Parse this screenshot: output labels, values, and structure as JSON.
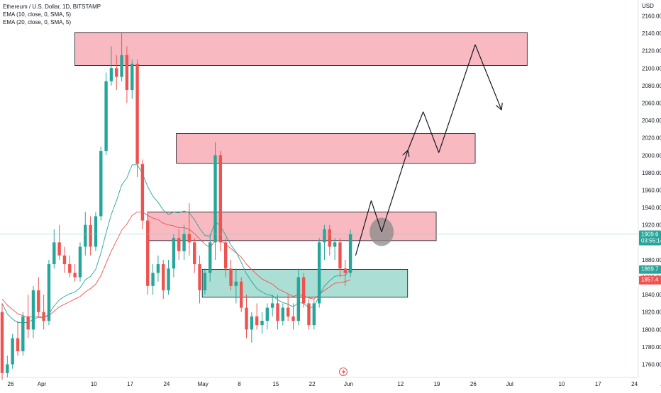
{
  "legend": {
    "title": "Ethereum / U.S. Dollar, 1D, BITSTAMP",
    "ema10": "EMA (10, close, 0, SMA, 5)",
    "ema20": "EMA (20, close, 0, SMA, 5)"
  },
  "colors": {
    "up": "#26a69a",
    "down": "#ef5350",
    "ema10": "#26a69a",
    "ema20": "#ef5350",
    "resistance_fill": "#f7a1ab",
    "support_fill": "#8fd3c6",
    "price_line": "#80cbc4"
  },
  "chart_data": {
    "type": "candlestick",
    "title": "Ethereum / U.S. Dollar, 1D, BITSTAMP",
    "y_axis_unit": "USD",
    "ylim": [
      1745,
      2175
    ],
    "y_ticks": [
      1760,
      1780,
      1800,
      1820,
      1840,
      1860,
      1880,
      1900,
      1920,
      1940,
      1960,
      1980,
      2000,
      2020,
      2040,
      2060,
      2080,
      2100,
      2120,
      2140,
      2160
    ],
    "x_ticks": [
      "26",
      "Apr",
      "10",
      "17",
      "24",
      "May",
      "8",
      "15",
      "22",
      "Jun",
      "12",
      "19",
      "26",
      "Jul",
      "10",
      "17",
      "24",
      "Aug"
    ],
    "current_price": "1909.6",
    "countdown": "03:55:14",
    "ema10_last": "1869.7",
    "ema20_last": "1857.4",
    "candles": [
      {
        "o": 1820,
        "h": 1830,
        "l": 1742,
        "c": 1750
      },
      {
        "o": 1750,
        "h": 1770,
        "l": 1745,
        "c": 1760
      },
      {
        "o": 1760,
        "h": 1795,
        "l": 1755,
        "c": 1790
      },
      {
        "o": 1790,
        "h": 1810,
        "l": 1770,
        "c": 1775
      },
      {
        "o": 1775,
        "h": 1820,
        "l": 1770,
        "c": 1815
      },
      {
        "o": 1815,
        "h": 1840,
        "l": 1790,
        "c": 1800
      },
      {
        "o": 1800,
        "h": 1850,
        "l": 1790,
        "c": 1845
      },
      {
        "o": 1845,
        "h": 1860,
        "l": 1815,
        "c": 1820
      },
      {
        "o": 1820,
        "h": 1840,
        "l": 1800,
        "c": 1810
      },
      {
        "o": 1810,
        "h": 1880,
        "l": 1805,
        "c": 1875
      },
      {
        "o": 1875,
        "h": 1915,
        "l": 1870,
        "c": 1900
      },
      {
        "o": 1900,
        "h": 1920,
        "l": 1880,
        "c": 1885
      },
      {
        "o": 1885,
        "h": 1895,
        "l": 1865,
        "c": 1875
      },
      {
        "o": 1875,
        "h": 1885,
        "l": 1860,
        "c": 1865
      },
      {
        "o": 1865,
        "h": 1875,
        "l": 1855,
        "c": 1860
      },
      {
        "o": 1860,
        "h": 1900,
        "l": 1855,
        "c": 1895
      },
      {
        "o": 1895,
        "h": 1935,
        "l": 1885,
        "c": 1920
      },
      {
        "o": 1920,
        "h": 1930,
        "l": 1885,
        "c": 1895
      },
      {
        "o": 1895,
        "h": 1935,
        "l": 1890,
        "c": 1930
      },
      {
        "o": 1930,
        "h": 2010,
        "l": 1925,
        "c": 2005
      },
      {
        "o": 2005,
        "h": 2095,
        "l": 2000,
        "c": 2085
      },
      {
        "o": 2085,
        "h": 2125,
        "l": 2080,
        "c": 2100
      },
      {
        "o": 2100,
        "h": 2115,
        "l": 2075,
        "c": 2090
      },
      {
        "o": 2090,
        "h": 2140,
        "l": 2085,
        "c": 2115
      },
      {
        "o": 2115,
        "h": 2125,
        "l": 2060,
        "c": 2075
      },
      {
        "o": 2075,
        "h": 2110,
        "l": 2065,
        "c": 2105
      },
      {
        "o": 2105,
        "h": 2110,
        "l": 1975,
        "c": 1990
      },
      {
        "o": 1990,
        "h": 1995,
        "l": 1915,
        "c": 1925
      },
      {
        "o": 1925,
        "h": 1935,
        "l": 1840,
        "c": 1850
      },
      {
        "o": 1850,
        "h": 1875,
        "l": 1840,
        "c": 1865
      },
      {
        "o": 1865,
        "h": 1885,
        "l": 1855,
        "c": 1875
      },
      {
        "o": 1875,
        "h": 1880,
        "l": 1835,
        "c": 1845
      },
      {
        "o": 1845,
        "h": 1880,
        "l": 1840,
        "c": 1870
      },
      {
        "o": 1870,
        "h": 1910,
        "l": 1860,
        "c": 1905
      },
      {
        "o": 1905,
        "h": 1915,
        "l": 1880,
        "c": 1890
      },
      {
        "o": 1890,
        "h": 1920,
        "l": 1880,
        "c": 1910
      },
      {
        "o": 1910,
        "h": 1945,
        "l": 1885,
        "c": 1900
      },
      {
        "o": 1900,
        "h": 1905,
        "l": 1865,
        "c": 1875
      },
      {
        "o": 1875,
        "h": 1885,
        "l": 1830,
        "c": 1845
      },
      {
        "o": 1845,
        "h": 1870,
        "l": 1840,
        "c": 1865
      },
      {
        "o": 1865,
        "h": 1910,
        "l": 1855,
        "c": 1900
      },
      {
        "o": 1900,
        "h": 2015,
        "l": 1880,
        "c": 2000
      },
      {
        "o": 2000,
        "h": 2005,
        "l": 1890,
        "c": 1900
      },
      {
        "o": 1900,
        "h": 1905,
        "l": 1860,
        "c": 1870
      },
      {
        "o": 1870,
        "h": 1880,
        "l": 1845,
        "c": 1850
      },
      {
        "o": 1850,
        "h": 1870,
        "l": 1830,
        "c": 1855
      },
      {
        "o": 1855,
        "h": 1860,
        "l": 1820,
        "c": 1825
      },
      {
        "o": 1825,
        "h": 1840,
        "l": 1790,
        "c": 1800
      },
      {
        "o": 1800,
        "h": 1820,
        "l": 1785,
        "c": 1815
      },
      {
        "o": 1815,
        "h": 1830,
        "l": 1800,
        "c": 1805
      },
      {
        "o": 1805,
        "h": 1820,
        "l": 1795,
        "c": 1810
      },
      {
        "o": 1810,
        "h": 1830,
        "l": 1800,
        "c": 1825
      },
      {
        "o": 1825,
        "h": 1840,
        "l": 1815,
        "c": 1830
      },
      {
        "o": 1830,
        "h": 1840,
        "l": 1800,
        "c": 1810
      },
      {
        "o": 1810,
        "h": 1830,
        "l": 1805,
        "c": 1825
      },
      {
        "o": 1825,
        "h": 1840,
        "l": 1810,
        "c": 1815
      },
      {
        "o": 1815,
        "h": 1830,
        "l": 1800,
        "c": 1810
      },
      {
        "o": 1810,
        "h": 1870,
        "l": 1805,
        "c": 1860
      },
      {
        "o": 1860,
        "h": 1865,
        "l": 1825,
        "c": 1830
      },
      {
        "o": 1830,
        "h": 1835,
        "l": 1800,
        "c": 1805
      },
      {
        "o": 1805,
        "h": 1835,
        "l": 1800,
        "c": 1830
      },
      {
        "o": 1830,
        "h": 1905,
        "l": 1825,
        "c": 1900
      },
      {
        "o": 1900,
        "h": 1920,
        "l": 1880,
        "c": 1915
      },
      {
        "o": 1915,
        "h": 1920,
        "l": 1885,
        "c": 1895
      },
      {
        "o": 1895,
        "h": 1905,
        "l": 1880,
        "c": 1900
      },
      {
        "o": 1900,
        "h": 1905,
        "l": 1860,
        "c": 1870
      },
      {
        "o": 1870,
        "h": 1880,
        "l": 1850,
        "c": 1865
      },
      {
        "o": 1865,
        "h": 1915,
        "l": 1860,
        "c": 1909.6
      }
    ],
    "ema10": [
      1830,
      1818,
      1812,
      1808,
      1808,
      1808,
      1812,
      1814,
      1813,
      1818,
      1827,
      1834,
      1838,
      1841,
      1843,
      1848,
      1857,
      1861,
      1869,
      1888,
      1911,
      1932,
      1948,
      1966,
      1974,
      1989,
      1989,
      1979,
      1964,
      1953,
      1946,
      1937,
      1932,
      1935,
      1934,
      1936,
      1934,
      1926,
      1916,
      1908,
      1907,
      1924,
      1919,
      1908,
      1897,
      1889,
      1877,
      1864,
      1855,
      1847,
      1843,
      1840,
      1839,
      1834,
      1831,
      1829,
      1826,
      1831,
      1830,
      1825,
      1826,
      1839,
      1850,
      1856,
      1861,
      1862,
      1862,
      1870
    ],
    "ema20": [
      1835,
      1828,
      1823,
      1818,
      1816,
      1814,
      1815,
      1815,
      1814,
      1816,
      1821,
      1826,
      1829,
      1832,
      1835,
      1838,
      1843,
      1847,
      1852,
      1862,
      1876,
      1890,
      1902,
      1914,
      1921,
      1931,
      1935,
      1935,
      1931,
      1928,
      1926,
      1922,
      1920,
      1919,
      1917,
      1917,
      1915,
      1910,
      1904,
      1898,
      1894,
      1902,
      1902,
      1898,
      1893,
      1888,
      1883,
      1875,
      1869,
      1863,
      1858,
      1855,
      1852,
      1847,
      1844,
      1841,
      1838,
      1840,
      1839,
      1836,
      1835,
      1840,
      1845,
      1849,
      1853,
      1854,
      1855,
      1857
    ]
  },
  "zones": {
    "resistance_top": {
      "y_low": 2103,
      "y_high": 2141
    },
    "resistance_mid": {
      "y_low": 1991,
      "y_high": 2025
    },
    "resistance_low": {
      "y_low": 1902,
      "y_high": 1935
    },
    "support": {
      "y_low": 1837,
      "y_high": 1869
    }
  },
  "projection": [
    {
      "day": 68,
      "price": 1885
    },
    {
      "day": 71,
      "price": 1948
    },
    {
      "day": 73,
      "price": 1912
    },
    {
      "day": 78,
      "price": 2005
    },
    {
      "day": 81,
      "price": 2050
    },
    {
      "day": 84,
      "price": 2003
    },
    {
      "day": 91,
      "price": 2127
    },
    {
      "day": 96,
      "price": 2053
    }
  ]
}
